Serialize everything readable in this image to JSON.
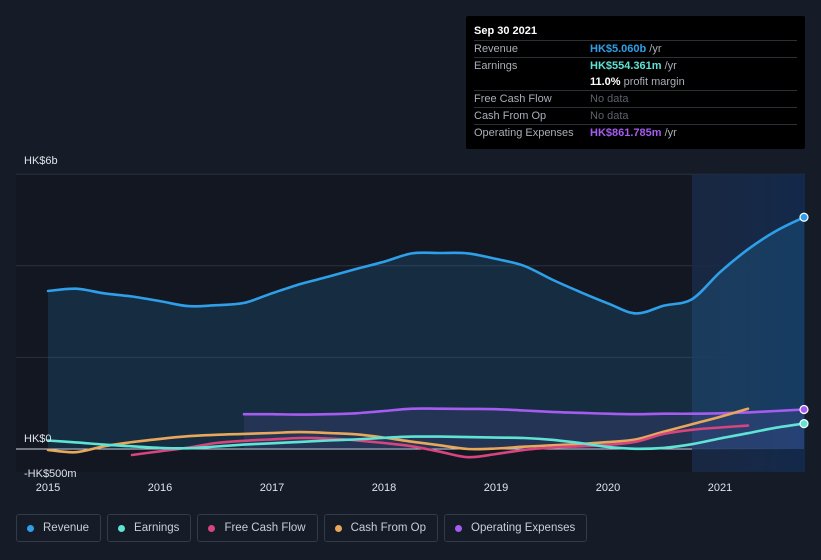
{
  "tooltip": {
    "date": "Sep 30 2021",
    "rows": {
      "revenue": {
        "label": "Revenue",
        "value": "HK$5.060b",
        "unit": "/yr",
        "color": "#2e9fe8"
      },
      "earnings": {
        "label": "Earnings",
        "value": "HK$554.361m",
        "unit": "/yr",
        "color": "#5fe3d4"
      },
      "margin": {
        "value": "11.0%",
        "unit": "profit margin"
      },
      "fcf": {
        "label": "Free Cash Flow",
        "value": "No data"
      },
      "cfo": {
        "label": "Cash From Op",
        "value": "No data"
      },
      "opex": {
        "label": "Operating Expenses",
        "value": "HK$861.785m",
        "unit": "/yr",
        "color": "#a55cf0"
      }
    }
  },
  "legend": [
    {
      "label": "Revenue",
      "color": "#2e9fe8"
    },
    {
      "label": "Earnings",
      "color": "#5fe3d4"
    },
    {
      "label": "Free Cash Flow",
      "color": "#d6457e"
    },
    {
      "label": "Cash From Op",
      "color": "#e8a85b"
    },
    {
      "label": "Operating Expenses",
      "color": "#a55cf0"
    }
  ],
  "chart_data": {
    "type": "line",
    "y_unit": "HK$ millions",
    "ylim": [
      -500,
      6000
    ],
    "y_tick_labels": [
      {
        "value": 6000,
        "label": "HK$6b"
      },
      {
        "value": 0,
        "label": "HK$0"
      },
      {
        "value": -500,
        "label": "-HK$500m"
      }
    ],
    "x_tick_labels": [
      "2015",
      "2016",
      "2017",
      "2018",
      "2019",
      "2020",
      "2021"
    ],
    "xlim": [
      2015,
      2021.75
    ],
    "forecast_shade_start": 2020.75,
    "grid": true,
    "series": [
      {
        "name": "Revenue",
        "color": "#2e9fe8",
        "fill": true,
        "end_marker": true,
        "x": [
          2015.0,
          2015.25,
          2015.5,
          2015.75,
          2016.0,
          2016.25,
          2016.5,
          2016.75,
          2017.0,
          2017.25,
          2017.5,
          2017.75,
          2018.0,
          2018.25,
          2018.5,
          2018.75,
          2019.0,
          2019.25,
          2019.5,
          2019.75,
          2020.0,
          2020.25,
          2020.5,
          2020.75,
          2021.0,
          2021.25,
          2021.5,
          2021.75
        ],
        "y": [
          3450,
          3500,
          3400,
          3330,
          3230,
          3120,
          3140,
          3190,
          3400,
          3600,
          3760,
          3930,
          4090,
          4270,
          4280,
          4270,
          4150,
          4000,
          3700,
          3430,
          3180,
          2960,
          3130,
          3270,
          3860,
          4360,
          4760,
          5060
        ]
      },
      {
        "name": "Earnings",
        "color": "#5fe3d4",
        "fill": false,
        "end_marker": true,
        "x": [
          2015.0,
          2015.25,
          2015.5,
          2015.75,
          2016.0,
          2016.25,
          2016.5,
          2016.75,
          2017.0,
          2017.25,
          2017.5,
          2017.75,
          2018.0,
          2018.25,
          2018.5,
          2018.75,
          2019.0,
          2019.25,
          2019.5,
          2019.75,
          2020.0,
          2020.25,
          2020.5,
          2020.75,
          2021.0,
          2021.25,
          2021.5,
          2021.75
        ],
        "y": [
          185,
          145,
          95,
          60,
          25,
          15,
          55,
          95,
          125,
          155,
          185,
          210,
          245,
          270,
          270,
          260,
          250,
          240,
          200,
          130,
          45,
          5,
          25,
          105,
          230,
          345,
          465,
          554
        ]
      },
      {
        "name": "Free Cash Flow",
        "color": "#d6457e",
        "fill": false,
        "end_marker": false,
        "x": [
          2015.75,
          2016.0,
          2016.25,
          2016.5,
          2016.75,
          2017.0,
          2017.25,
          2017.5,
          2017.75,
          2018.0,
          2018.25,
          2018.5,
          2018.75,
          2019.0,
          2019.25,
          2019.5,
          2019.75,
          2020.0,
          2020.25,
          2020.5,
          2020.75,
          2021.0,
          2021.25
        ],
        "y": [
          -130,
          -50,
          30,
          130,
          180,
          210,
          240,
          230,
          190,
          130,
          60,
          -60,
          -180,
          -110,
          -20,
          30,
          60,
          90,
          160,
          330,
          420,
          470,
          510
        ]
      },
      {
        "name": "Cash From Op",
        "color": "#e8a85b",
        "fill": false,
        "end_marker": false,
        "x": [
          2015.0,
          2015.25,
          2015.5,
          2015.75,
          2016.0,
          2016.25,
          2016.5,
          2016.75,
          2017.0,
          2017.25,
          2017.5,
          2017.75,
          2018.0,
          2018.25,
          2018.5,
          2018.75,
          2019.0,
          2019.25,
          2019.5,
          2019.75,
          2020.0,
          2020.25,
          2020.5,
          2020.75,
          2021.0,
          2021.25
        ],
        "y": [
          -20,
          -70,
          60,
          150,
          220,
          280,
          310,
          330,
          350,
          370,
          350,
          320,
          250,
          160,
          80,
          0,
          10,
          50,
          80,
          110,
          150,
          210,
          380,
          540,
          700,
          880
        ]
      },
      {
        "name": "Operating Expenses",
        "color": "#a55cf0",
        "fill": true,
        "end_marker": true,
        "x": [
          2016.75,
          2017.0,
          2017.25,
          2017.5,
          2017.75,
          2018.0,
          2018.25,
          2018.5,
          2018.75,
          2019.0,
          2019.25,
          2019.5,
          2019.75,
          2020.0,
          2020.25,
          2020.5,
          2020.75,
          2021.0,
          2021.25,
          2021.5,
          2021.75
        ],
        "y": [
          760,
          760,
          750,
          760,
          780,
          830,
          880,
          880,
          875,
          870,
          840,
          810,
          790,
          770,
          760,
          770,
          770,
          780,
          800,
          830,
          862
        ]
      }
    ]
  }
}
